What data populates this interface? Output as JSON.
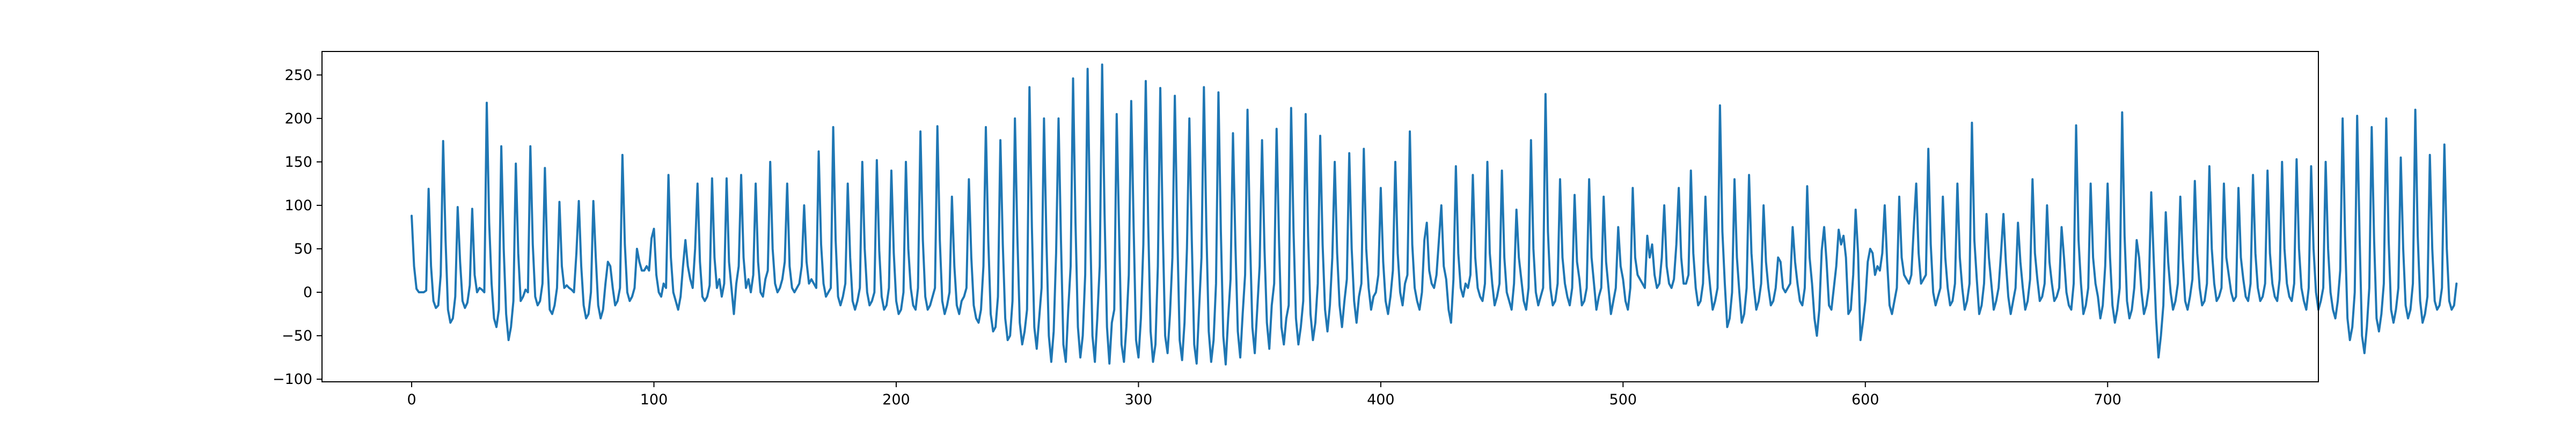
{
  "chart_data": {
    "type": "line",
    "title": "",
    "xlabel": "",
    "ylabel": "",
    "xlim": [
      -37,
      787
    ],
    "ylim": [
      -103,
      277
    ],
    "x_ticks": [
      0,
      100,
      200,
      300,
      400,
      500,
      600,
      700
    ],
    "y_ticks": [
      -100,
      -50,
      0,
      50,
      100,
      150,
      200,
      250
    ],
    "x_tick_labels": [
      "0",
      "100",
      "200",
      "300",
      "400",
      "500",
      "600",
      "700"
    ],
    "y_tick_labels": [
      "−100",
      "−50",
      "0",
      "50",
      "100",
      "150",
      "200",
      "250"
    ],
    "grid": false,
    "legend": "none",
    "series": [
      {
        "color": "#1f77b4",
        "x_start": 0,
        "x_step": 1,
        "description_note": "",
        "values": [
          88,
          30,
          4,
          0,
          0,
          0,
          2,
          119,
          30,
          -10,
          -18,
          -15,
          20,
          174,
          60,
          -20,
          -35,
          -30,
          -5,
          98,
          35,
          -10,
          -18,
          -12,
          8,
          96,
          20,
          0,
          5,
          3,
          0,
          218,
          80,
          10,
          -30,
          -40,
          -20,
          168,
          50,
          -25,
          -55,
          -40,
          -10,
          148,
          45,
          -10,
          -5,
          3,
          0,
          168,
          55,
          -5,
          -15,
          -10,
          10,
          143,
          40,
          -20,
          -25,
          -15,
          5,
          104,
          30,
          5,
          8,
          5,
          3,
          0,
          45,
          105,
          30,
          -15,
          -30,
          -25,
          0,
          105,
          40,
          -15,
          -30,
          -20,
          10,
          35,
          30,
          5,
          -15,
          -10,
          5,
          158,
          55,
          0,
          -10,
          -5,
          5,
          50,
          35,
          25,
          25,
          30,
          25,
          62,
          73,
          20,
          0,
          -5,
          10,
          5,
          135,
          40,
          0,
          -10,
          -20,
          -5,
          30,
          60,
          30,
          15,
          5,
          50,
          125,
          35,
          -5,
          -10,
          -5,
          8,
          131,
          40,
          5,
          15,
          -5,
          10,
          131,
          35,
          5,
          -25,
          10,
          30,
          135,
          40,
          5,
          15,
          0,
          20,
          125,
          35,
          0,
          -5,
          15,
          25,
          150,
          50,
          10,
          0,
          5,
          15,
          35,
          125,
          30,
          5,
          0,
          5,
          10,
          30,
          100,
          35,
          10,
          15,
          10,
          5,
          162,
          55,
          10,
          -5,
          0,
          5,
          190,
          60,
          -5,
          -15,
          -5,
          10,
          125,
          40,
          -10,
          -20,
          -10,
          5,
          150,
          50,
          0,
          -15,
          -10,
          0,
          152,
          48,
          -5,
          -20,
          -15,
          5,
          140,
          45,
          -10,
          -25,
          -20,
          0,
          150,
          50,
          5,
          -15,
          -20,
          5,
          185,
          60,
          -5,
          -20,
          -15,
          -5,
          5,
          191,
          60,
          -10,
          -25,
          -15,
          0,
          110,
          30,
          -15,
          -25,
          -10,
          -5,
          5,
          130,
          40,
          -15,
          -30,
          -35,
          -20,
          30,
          190,
          60,
          -25,
          -45,
          -40,
          -5,
          175,
          55,
          -30,
          -55,
          -50,
          -10,
          200,
          65,
          -35,
          -60,
          -45,
          -20,
          236,
          75,
          -40,
          -65,
          -30,
          5,
          200,
          60,
          -50,
          -80,
          -45,
          45,
          200,
          60,
          -60,
          -80,
          -20,
          30,
          246,
          80,
          -40,
          -75,
          -50,
          20,
          257,
          85,
          -50,
          -80,
          -30,
          30,
          262,
          90,
          -40,
          -82,
          -35,
          -20,
          205,
          70,
          -60,
          -80,
          -40,
          20,
          220,
          75,
          -55,
          -75,
          -30,
          55,
          243,
          80,
          -45,
          -80,
          -60,
          30,
          235,
          75,
          -50,
          -70,
          -25,
          40,
          226,
          70,
          -55,
          -78,
          -35,
          50,
          200,
          60,
          -60,
          -82,
          -20,
          40,
          236,
          75,
          -45,
          -80,
          -55,
          10,
          230,
          70,
          -50,
          -83,
          -30,
          15,
          183,
          55,
          -45,
          -75,
          -25,
          20,
          210,
          65,
          -40,
          -70,
          -20,
          30,
          175,
          50,
          -35,
          -65,
          -15,
          10,
          188,
          60,
          -40,
          -60,
          -30,
          -15,
          212,
          70,
          -30,
          -60,
          -40,
          -10,
          205,
          65,
          -25,
          -55,
          -35,
          10,
          180,
          55,
          -20,
          -45,
          -15,
          40,
          150,
          45,
          -15,
          -40,
          -10,
          15,
          160,
          50,
          -10,
          -35,
          -5,
          10,
          165,
          50,
          5,
          -20,
          -5,
          0,
          20,
          120,
          35,
          -10,
          -25,
          -5,
          25,
          150,
          45,
          0,
          -15,
          10,
          20,
          185,
          55,
          5,
          -10,
          -20,
          0,
          60,
          80,
          25,
          10,
          5,
          20,
          60,
          100,
          30,
          15,
          -20,
          -35,
          15,
          145,
          45,
          5,
          -5,
          10,
          5,
          20,
          135,
          40,
          5,
          -5,
          -10,
          10,
          150,
          45,
          10,
          -15,
          -5,
          10,
          140,
          40,
          0,
          -10,
          -20,
          10,
          95,
          40,
          15,
          -10,
          -20,
          5,
          175,
          50,
          0,
          -15,
          -5,
          5,
          228,
          70,
          5,
          -15,
          -10,
          10,
          130,
          40,
          10,
          -5,
          -15,
          5,
          112,
          35,
          15,
          -15,
          -10,
          5,
          130,
          40,
          10,
          -20,
          -5,
          5,
          110,
          35,
          5,
          -25,
          -10,
          5,
          75,
          30,
          15,
          -10,
          -20,
          5,
          120,
          40,
          20,
          15,
          10,
          5,
          65,
          40,
          55,
          20,
          5,
          10,
          40,
          100,
          30,
          10,
          5,
          15,
          55,
          120,
          40,
          10,
          10,
          20,
          140,
          45,
          5,
          -15,
          -10,
          10,
          110,
          35,
          5,
          -20,
          -10,
          5,
          215,
          70,
          10,
          -40,
          -30,
          0,
          130,
          40,
          0,
          -35,
          -25,
          5,
          135,
          45,
          5,
          -20,
          -10,
          10,
          100,
          35,
          5,
          -15,
          -10,
          5,
          40,
          35,
          5,
          0,
          5,
          10,
          75,
          35,
          10,
          -10,
          -15,
          5,
          122,
          40,
          10,
          -30,
          -50,
          -20,
          48,
          75,
          35,
          -15,
          -20,
          5,
          30,
          72,
          55,
          65,
          40,
          -25,
          -20,
          20,
          95,
          45,
          -55,
          -35,
          -10,
          35,
          50,
          45,
          20,
          30,
          25,
          45,
          100,
          35,
          -15,
          -25,
          -10,
          5,
          110,
          40,
          20,
          15,
          10,
          20,
          75,
          125,
          45,
          10,
          15,
          20,
          165,
          55,
          0,
          -15,
          -5,
          5,
          110,
          40,
          5,
          -15,
          -10,
          10,
          125,
          40,
          5,
          -20,
          -10,
          10,
          195,
          60,
          15,
          -25,
          -15,
          10,
          90,
          40,
          10,
          -20,
          -10,
          5,
          45,
          90,
          35,
          -5,
          -25,
          -10,
          5,
          80,
          35,
          5,
          -20,
          -10,
          15,
          130,
          45,
          15,
          -10,
          -5,
          10,
          100,
          35,
          10,
          -10,
          -5,
          5,
          75,
          40,
          0,
          -15,
          -20,
          10,
          192,
          60,
          10,
          -25,
          -15,
          5,
          125,
          40,
          10,
          -5,
          -30,
          -15,
          30,
          125,
          40,
          -15,
          -35,
          -20,
          5,
          207,
          65,
          -10,
          -30,
          -20,
          5,
          60,
          40,
          0,
          -25,
          -15,
          5,
          115,
          40,
          -30,
          -75,
          -50,
          -15,
          92,
          35,
          0,
          -20,
          -10,
          10,
          110,
          40,
          -10,
          -20,
          -5,
          15,
          128,
          45,
          5,
          -15,
          -10,
          10,
          145,
          50,
          10,
          -10,
          -5,
          5,
          125,
          40,
          20,
          0,
          -10,
          -5,
          120,
          40,
          15,
          -5,
          -10,
          10,
          135,
          45,
          5,
          -10,
          -5,
          10,
          140,
          45,
          10,
          -5,
          -10,
          15,
          150,
          50,
          10,
          -5,
          -10,
          10,
          153,
          50,
          5,
          -10,
          -20,
          5,
          145,
          50,
          0,
          -20,
          -10,
          5,
          150,
          50,
          0,
          -20,
          -30,
          -10,
          25,
          200,
          65,
          -30,
          -55,
          -40,
          0,
          203,
          65,
          -50,
          -70,
          -40,
          5,
          190,
          60,
          -30,
          -45,
          -25,
          10,
          200,
          60,
          -20,
          -35,
          -20,
          5,
          155,
          50,
          -15,
          -30,
          -20,
          10,
          210,
          65,
          -10,
          -35,
          -25,
          -5,
          158,
          50,
          -10,
          -20,
          -15,
          5,
          170,
          50,
          -10,
          -20,
          -15,
          10
        ]
      }
    ]
  }
}
